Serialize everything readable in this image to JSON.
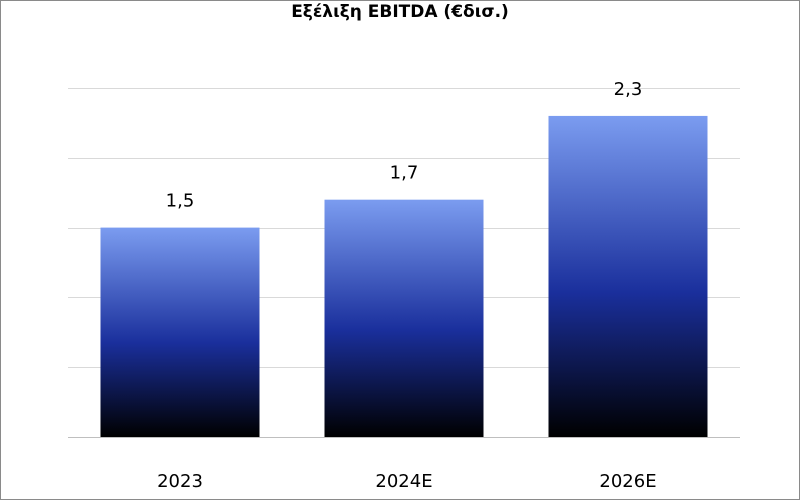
{
  "title": "Εξέλιξη EBITDA (€δισ.)",
  "chart_data": {
    "type": "bar",
    "title": "Εξέλιξη EBITDA (€δισ.)",
    "categories": [
      "2023",
      "2024E",
      "2026E"
    ],
    "values": [
      1.5,
      1.7,
      2.3
    ],
    "data_labels": [
      "1,5",
      "1,7",
      "2,3"
    ],
    "xlabel": "",
    "ylabel": "",
    "ylim": [
      0,
      2.5
    ],
    "y_tick_step": 0.5,
    "y_axis_labels_shown": false,
    "grid": true,
    "legend": "none",
    "colors": {
      "bar_top": "#7b9cf0",
      "bar_mid": "#1a2f9c",
      "bar_bottom": "#000000",
      "gridline": "#d9d9d9",
      "axis": "#bfbfbf"
    }
  }
}
